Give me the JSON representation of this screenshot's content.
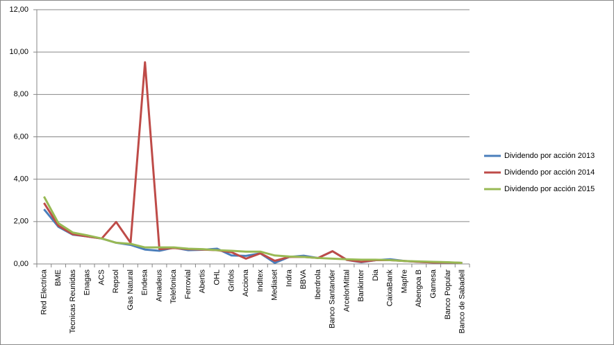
{
  "chart_data": {
    "type": "line",
    "categories": [
      "Red Electrica",
      "BME",
      "Tecnicas Reunidas",
      "Enagas",
      "ACS",
      "Repsol",
      "Gas Natural",
      "Endesa",
      "Amadeus",
      "Telefonica",
      "Ferrovial",
      "Abertis",
      "OHL",
      "Grifols",
      "Acciona",
      "Inditex",
      "Mediaset",
      "Indra",
      "BBVA",
      "Iberdrola",
      "Banco Santander",
      "ArcelorMittal",
      "Bankinter",
      "Dia",
      "CaixaBank",
      "Mapfre",
      "Abengoa B",
      "Gamesa",
      "Banco Popular",
      "Banco de Sabadell"
    ],
    "series": [
      {
        "name": "Dividendo por acción 2013",
        "color": "#4a7ebb",
        "values": [
          2.58,
          1.75,
          1.38,
          1.3,
          1.2,
          1.0,
          0.9,
          0.68,
          0.62,
          0.77,
          0.65,
          0.67,
          0.72,
          0.4,
          0.38,
          0.5,
          0.05,
          0.33,
          0.39,
          0.28,
          0.6,
          0.19,
          0.08,
          0.18,
          0.22,
          0.14,
          0.1,
          0.07,
          0.07,
          0.05
        ]
      },
      {
        "name": "Dividendo por acción 2014",
        "color": "#be4b48",
        "values": [
          2.88,
          1.8,
          1.4,
          1.3,
          1.2,
          1.98,
          1.0,
          9.52,
          0.7,
          0.75,
          0.7,
          0.68,
          0.65,
          0.55,
          0.25,
          0.5,
          0.15,
          0.33,
          0.33,
          0.28,
          0.6,
          0.19,
          0.1,
          0.18,
          0.18,
          0.14,
          0.1,
          0.07,
          0.07,
          0.05
        ]
      },
      {
        "name": "Dividendo por acción 2015",
        "color": "#98b954",
        "values": [
          3.18,
          1.92,
          1.48,
          1.35,
          1.2,
          1.0,
          0.95,
          0.78,
          0.78,
          0.78,
          0.72,
          0.7,
          0.65,
          0.62,
          0.58,
          0.58,
          0.4,
          0.35,
          0.33,
          0.28,
          0.25,
          0.22,
          0.2,
          0.2,
          0.18,
          0.14,
          0.12,
          0.1,
          0.08,
          0.05
        ]
      }
    ],
    "ylim": [
      0,
      12
    ],
    "yticks": [
      {
        "value": 0,
        "label": "0,00"
      },
      {
        "value": 2,
        "label": "2,00"
      },
      {
        "value": 4,
        "label": "4,00"
      },
      {
        "value": 6,
        "label": "6,00"
      },
      {
        "value": 8,
        "label": "8,00"
      },
      {
        "value": 10,
        "label": "10,00"
      },
      {
        "value": 12,
        "label": "12,00"
      }
    ],
    "grid": true,
    "legend": "right"
  }
}
